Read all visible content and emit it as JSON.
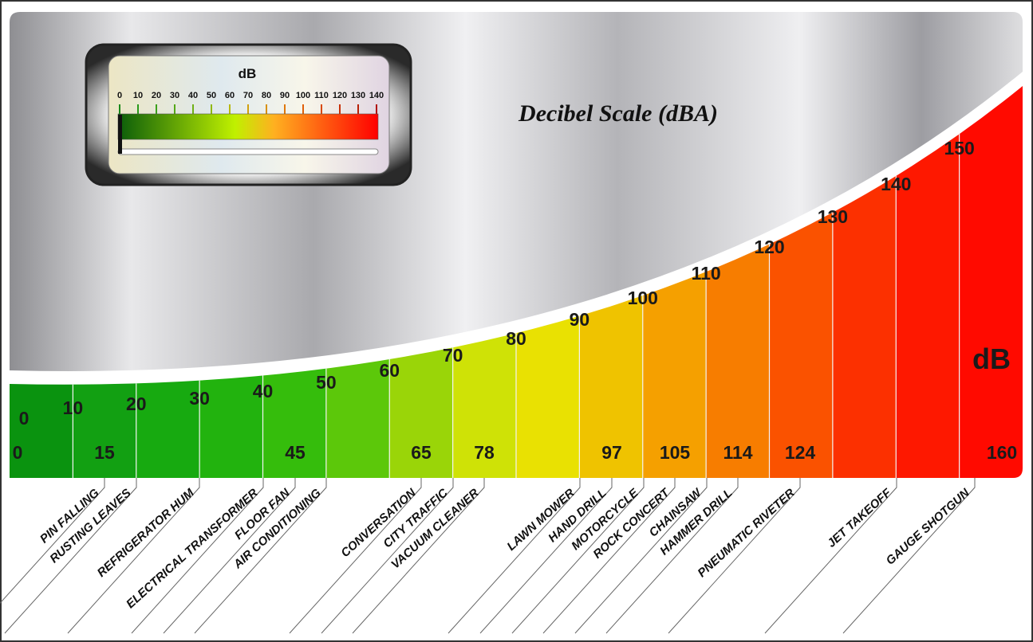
{
  "title": "Decibel Scale (dBA)",
  "unit_label": "dB",
  "meter": {
    "label": "dB",
    "ticks": [
      "0",
      "10",
      "20",
      "30",
      "40",
      "50",
      "60",
      "70",
      "80",
      "90",
      "100",
      "110",
      "120",
      "130",
      "140"
    ],
    "needle_value": 0
  },
  "scale_levels": [
    "0",
    "10",
    "20",
    "30",
    "40",
    "50",
    "60",
    "70",
    "80",
    "90",
    "100",
    "110",
    "120",
    "130",
    "140",
    "150"
  ],
  "column_colors": [
    "#0a930f",
    "#12a012",
    "#17aa10",
    "#22b30e",
    "#35bd0c",
    "#5cc80a",
    "#9ad508",
    "#cfe206",
    "#e9e102",
    "#efc300",
    "#f5a000",
    "#f77d00",
    "#fa5200",
    "#fc3000",
    "#fe1800",
    "#ff0a00"
  ],
  "sources": [
    {
      "name": "PIN FALLING",
      "db": "15"
    },
    {
      "name": "RUSTING LEAVES",
      "db": ""
    },
    {
      "name": "REFRIGERATOR HUM",
      "db": ""
    },
    {
      "name": "ELECTRICAL TRANSFORMER",
      "db": ""
    },
    {
      "name": "FLOOR FAN",
      "db": "45"
    },
    {
      "name": "AIR CONDITIONING",
      "db": ""
    },
    {
      "name": "CONVERSATION",
      "db": "65"
    },
    {
      "name": "CITY TRAFFIC",
      "db": ""
    },
    {
      "name": "VACUUM CLEANER",
      "db": "78"
    },
    {
      "name": "LAWN MOWER",
      "db": ""
    },
    {
      "name": "HAND DRILL",
      "db": "97"
    },
    {
      "name": "MOTORCYCLE",
      "db": ""
    },
    {
      "name": "ROCK CONCERT",
      "db": "105"
    },
    {
      "name": "CHAINSAW",
      "db": ""
    },
    {
      "name": "HAMMER DRILL",
      "db": "114"
    },
    {
      "name": "PNEUMATIC RIVETER",
      "db": "124"
    },
    {
      "name": "JET TAKEOFF",
      "db": ""
    },
    {
      "name": "GAUGE SHOTGUN",
      "db": "160"
    }
  ],
  "bottom_numbers": [
    "0",
    "15",
    "45",
    "65",
    "78",
    "97",
    "105",
    "114",
    "124",
    "160"
  ]
}
